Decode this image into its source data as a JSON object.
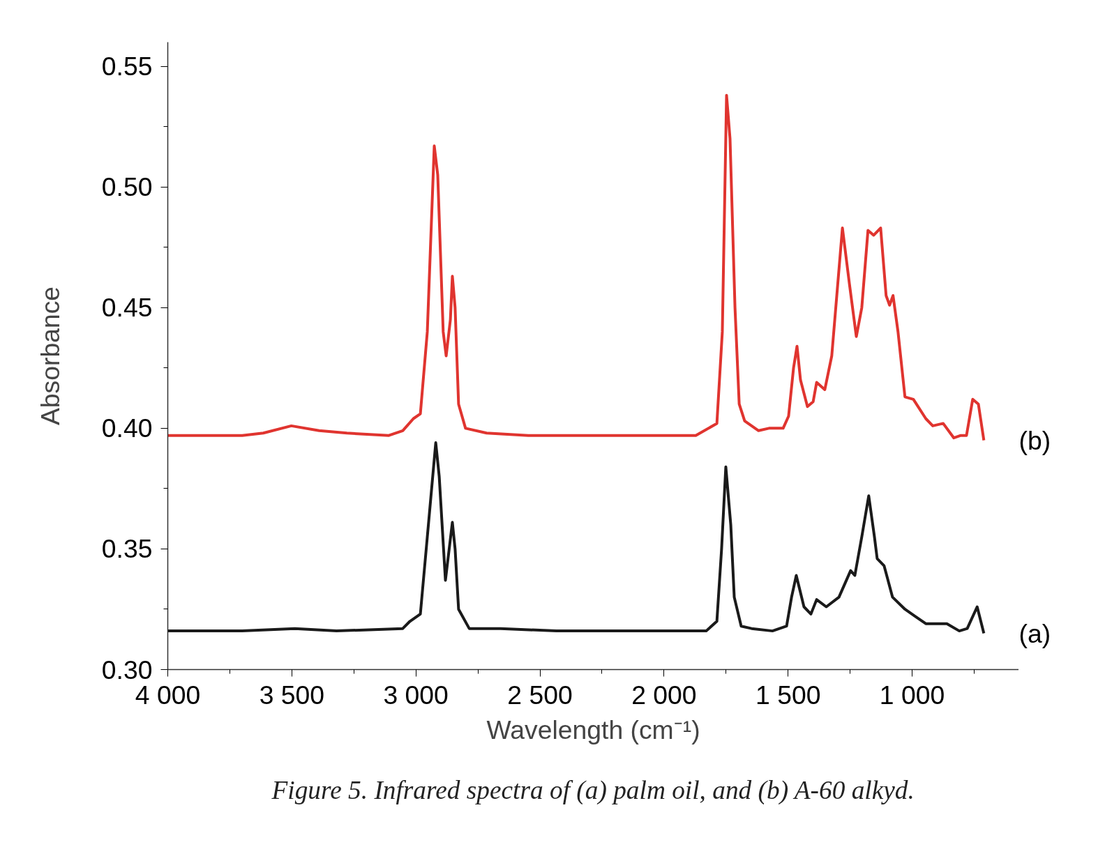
{
  "chart_data": {
    "type": "line",
    "xlabel": "Wavelength (cm⁻¹)",
    "ylabel": "Absorbance",
    "annotations": [
      "Figure 5. Infrared spectra of (a) palm oil, and (b) A-60 alkyd."
    ],
    "xlim": [
      4000,
      570
    ],
    "ylim": [
      0.3,
      0.56
    ],
    "xticks": [
      {
        "value": 4000,
        "label": "4 000"
      },
      {
        "value": 3750,
        "label": null
      },
      {
        "value": 3500,
        "label": "3 500"
      },
      {
        "value": 3250,
        "label": null
      },
      {
        "value": 3000,
        "label": "3 000"
      },
      {
        "value": 2750,
        "label": null
      },
      {
        "value": 2500,
        "label": "2 500"
      },
      {
        "value": 2250,
        "label": null
      },
      {
        "value": 2000,
        "label": "2 000"
      },
      {
        "value": 1750,
        "label": null
      },
      {
        "value": 1500,
        "label": "1 500"
      },
      {
        "value": 1250,
        "label": null
      },
      {
        "value": 1000,
        "label": "1 000"
      },
      {
        "value": 750,
        "label": null
      }
    ],
    "yticks": [
      {
        "value": 0.3,
        "label": "0.30"
      },
      {
        "value": 0.325,
        "label": null
      },
      {
        "value": 0.35,
        "label": "0.35"
      },
      {
        "value": 0.375,
        "label": null
      },
      {
        "value": 0.4,
        "label": "0.40"
      },
      {
        "value": 0.425,
        "label": null
      },
      {
        "value": 0.45,
        "label": "0.45"
      },
      {
        "value": 0.475,
        "label": null
      },
      {
        "value": 0.5,
        "label": "0.50"
      },
      {
        "value": 0.525,
        "label": null
      },
      {
        "value": 0.55,
        "label": "0.55"
      }
    ],
    "grid": false,
    "marker": "none",
    "line_style": "solid",
    "series": [
      {
        "name": "(b)",
        "color": "#e0342f",
        "x": [
          4000,
          3700,
          3615,
          3502,
          3390,
          3278,
          3109,
          3053,
          3010,
          2982,
          2954,
          2926,
          2912,
          2890,
          2878,
          2861,
          2853,
          2842,
          2828,
          2800,
          2715,
          2547,
          1872,
          1787,
          1765,
          1748,
          1734,
          1714,
          1697,
          1675,
          1619,
          1577,
          1520,
          1498,
          1478,
          1464,
          1450,
          1422,
          1399,
          1385,
          1352,
          1324,
          1281,
          1253,
          1225,
          1203,
          1178,
          1155,
          1127,
          1105,
          1091,
          1077,
          1057,
          1029,
          995,
          945,
          917,
          875,
          832,
          804,
          781,
          756,
          733,
          711
        ],
        "values": [
          0.397,
          0.397,
          0.398,
          0.401,
          0.399,
          0.398,
          0.397,
          0.399,
          0.404,
          0.406,
          0.44,
          0.517,
          0.505,
          0.44,
          0.43,
          0.445,
          0.463,
          0.45,
          0.41,
          0.4,
          0.398,
          0.397,
          0.397,
          0.402,
          0.44,
          0.538,
          0.52,
          0.45,
          0.41,
          0.403,
          0.399,
          0.4,
          0.4,
          0.405,
          0.425,
          0.434,
          0.42,
          0.409,
          0.411,
          0.419,
          0.416,
          0.43,
          0.483,
          0.46,
          0.438,
          0.45,
          0.482,
          0.48,
          0.483,
          0.455,
          0.451,
          0.455,
          0.44,
          0.413,
          0.412,
          0.404,
          0.401,
          0.402,
          0.396,
          0.397,
          0.397,
          0.412,
          0.41,
          0.395
        ]
      },
      {
        "name": "(a)",
        "color": "#1a1a1a",
        "x": [
          4000,
          3700,
          3488,
          3320,
          3053,
          3024,
          2996,
          2982,
          2954,
          2920,
          2906,
          2881,
          2853,
          2842,
          2828,
          2785,
          2659,
          2434,
          1830,
          1787,
          1768,
          1751,
          1731,
          1717,
          1689,
          1647,
          1563,
          1506,
          1486,
          1467,
          1436,
          1408,
          1385,
          1346,
          1295,
          1248,
          1231,
          1203,
          1175,
          1152,
          1141,
          1113,
          1079,
          1029,
          987,
          945,
          860,
          810,
          778,
          738,
          711
        ],
        "values": [
          0.316,
          0.316,
          0.317,
          0.316,
          0.317,
          0.32,
          0.322,
          0.323,
          0.355,
          0.394,
          0.38,
          0.337,
          0.361,
          0.35,
          0.325,
          0.317,
          0.317,
          0.316,
          0.316,
          0.32,
          0.35,
          0.384,
          0.36,
          0.33,
          0.318,
          0.317,
          0.316,
          0.318,
          0.33,
          0.339,
          0.326,
          0.323,
          0.329,
          0.326,
          0.33,
          0.341,
          0.339,
          0.355,
          0.372,
          0.355,
          0.346,
          0.343,
          0.33,
          0.325,
          0.322,
          0.319,
          0.319,
          0.316,
          0.317,
          0.326,
          0.315
        ]
      }
    ]
  }
}
